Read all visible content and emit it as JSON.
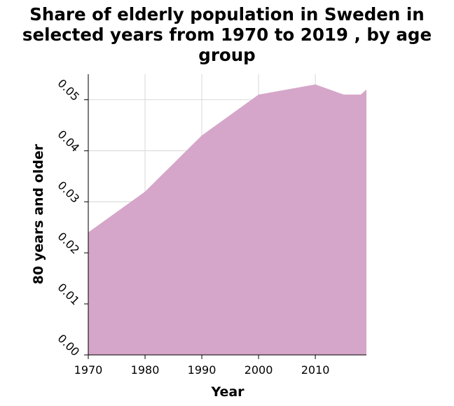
{
  "chart_data": {
    "type": "area",
    "title_lines": [
      "Share of elderly population in Sweden in",
      "selected years from 1970 to 2019 , by age",
      "group"
    ],
    "xlabel": "Year",
    "ylabel": "80 years and older",
    "x": [
      1970,
      1980,
      1990,
      2000,
      2010,
      2015,
      2018,
      2019
    ],
    "series": [
      {
        "values": [
          0.024,
          0.032,
          0.043,
          0.051,
          0.053,
          0.051,
          0.051,
          0.052
        ]
      }
    ],
    "xlim": [
      1970,
      2019
    ],
    "ylim": [
      0,
      0.055
    ],
    "x_ticks": [
      1970,
      1980,
      1990,
      2000,
      2010
    ],
    "x_tick_labels": [
      "1970",
      "1980",
      "1990",
      "2000",
      "2010"
    ],
    "y_ticks": [
      0,
      0.01,
      0.02,
      0.03,
      0.04,
      0.05
    ],
    "y_tick_labels": [
      "0.00",
      "0.01",
      "0.02",
      "0.03",
      "0.04",
      "0.05"
    ],
    "grid": true,
    "colors": {
      "fill": "#d5a6c9",
      "grid": "#dddddd",
      "axis": "#000000"
    }
  }
}
